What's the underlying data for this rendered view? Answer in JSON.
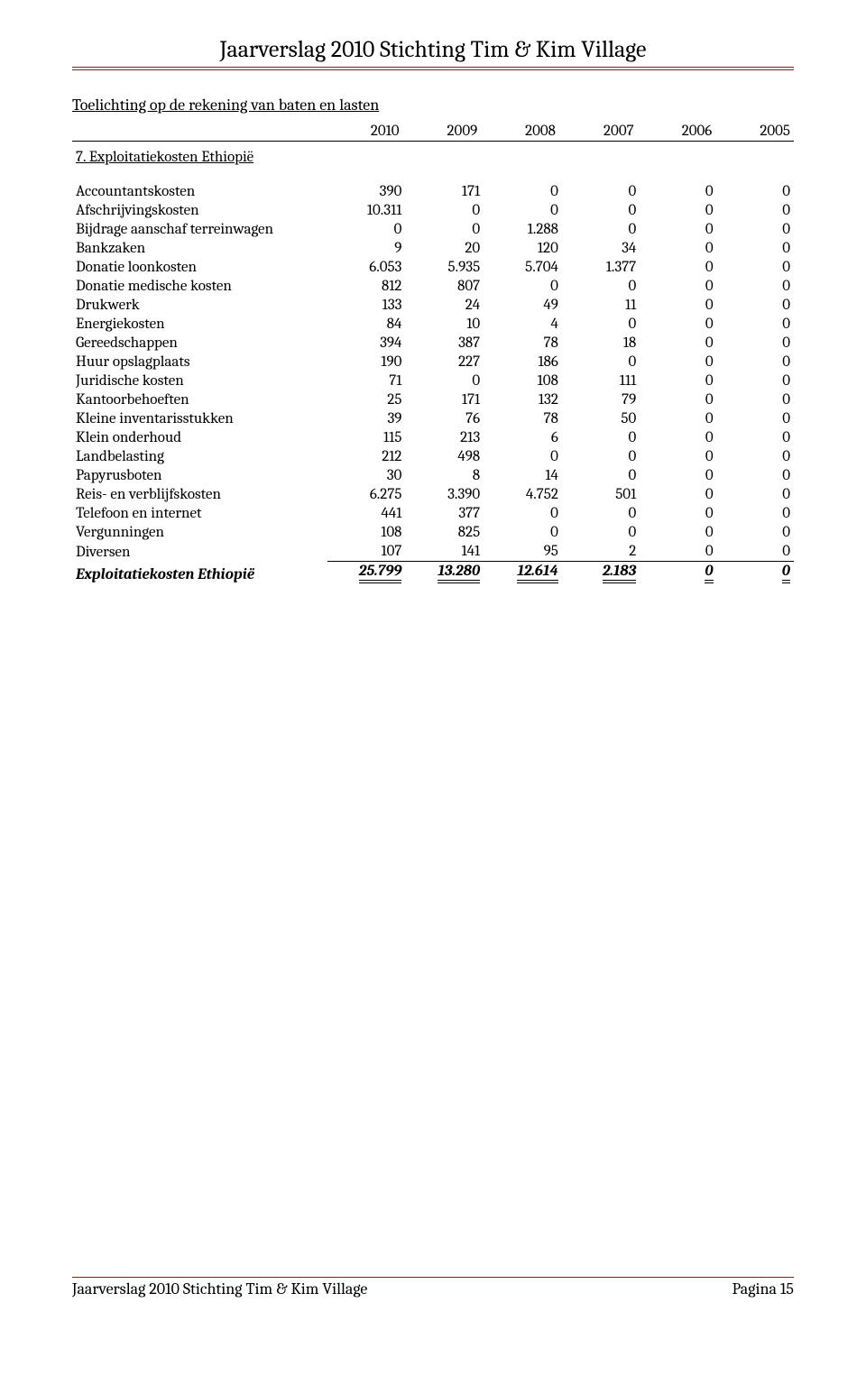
{
  "header": {
    "title": "Jaarverslag 2010 Stichting Tim & Kim Village"
  },
  "section_title": "Toelichting op de rekening van baten en lasten",
  "years": [
    "2010",
    "2009",
    "2008",
    "2007",
    "2006",
    "2005"
  ],
  "subsection": "7. Exploitatiekosten Ethiopië",
  "rows": [
    {
      "label": "Accountantskosten",
      "vals": [
        "390",
        "171",
        "0",
        "0",
        "0",
        "0"
      ]
    },
    {
      "label": "Afschrijvingskosten",
      "vals": [
        "10.311",
        "0",
        "0",
        "0",
        "0",
        "0"
      ]
    },
    {
      "label": "Bijdrage aanschaf terreinwagen",
      "vals": [
        "0",
        "0",
        "1.288",
        "0",
        "0",
        "0"
      ]
    },
    {
      "label": "Bankzaken",
      "vals": [
        "9",
        "20",
        "120",
        "34",
        "0",
        "0"
      ]
    },
    {
      "label": "Donatie loonkosten",
      "vals": [
        "6.053",
        "5.935",
        "5.704",
        "1.377",
        "0",
        "0"
      ]
    },
    {
      "label": "Donatie medische kosten",
      "vals": [
        "812",
        "807",
        "0",
        "0",
        "0",
        "0"
      ]
    },
    {
      "label": "Drukwerk",
      "vals": [
        "133",
        "24",
        "49",
        "11",
        "0",
        "0"
      ]
    },
    {
      "label": "Energiekosten",
      "vals": [
        "84",
        "10",
        "4",
        "0",
        "0",
        "0"
      ]
    },
    {
      "label": "Gereedschappen",
      "vals": [
        "394",
        "387",
        "78",
        "18",
        "0",
        "0"
      ]
    },
    {
      "label": "Huur opslagplaats",
      "vals": [
        "190",
        "227",
        "186",
        "0",
        "0",
        "0"
      ]
    },
    {
      "label": "Juridische kosten",
      "vals": [
        "71",
        "0",
        "108",
        "111",
        "0",
        "0"
      ]
    },
    {
      "label": "Kantoorbehoeften",
      "vals": [
        "25",
        "171",
        "132",
        "79",
        "0",
        "0"
      ]
    },
    {
      "label": "Kleine inventarisstukken",
      "vals": [
        "39",
        "76",
        "78",
        "50",
        "0",
        "0"
      ]
    },
    {
      "label": "Klein onderhoud",
      "vals": [
        "115",
        "213",
        "6",
        "0",
        "0",
        "0"
      ]
    },
    {
      "label": "Landbelasting",
      "vals": [
        "212",
        "498",
        "0",
        "0",
        "0",
        "0"
      ]
    },
    {
      "label": "Papyrusboten",
      "vals": [
        "30",
        "8",
        "14",
        "0",
        "0",
        "0"
      ]
    },
    {
      "label": "Reis- en verblijfskosten",
      "vals": [
        "6.275",
        "3.390",
        "4.752",
        "501",
        "0",
        "0"
      ]
    },
    {
      "label": "Telefoon en internet",
      "vals": [
        "441",
        "377",
        "0",
        "0",
        "0",
        "0"
      ]
    },
    {
      "label": "Vergunningen",
      "vals": [
        "108",
        "825",
        "0",
        "0",
        "0",
        "0"
      ]
    },
    {
      "label": "Diversen",
      "vals": [
        "107",
        "141",
        "95",
        "2",
        "0",
        "0"
      ]
    }
  ],
  "total": {
    "label": "Exploitatiekosten Ethiopië",
    "vals": [
      "25.799",
      "13.280",
      "12.614",
      "2.183",
      "0",
      "0"
    ]
  },
  "footer": {
    "left": "Jaarverslag 2010 Stichting Tim & Kim Village",
    "right": "Pagina 15"
  },
  "style": {
    "accent_color": "#8b1a1a",
    "text_color": "#000000",
    "background_color": "#ffffff",
    "header_fontsize": 26,
    "body_fontsize": 17
  }
}
